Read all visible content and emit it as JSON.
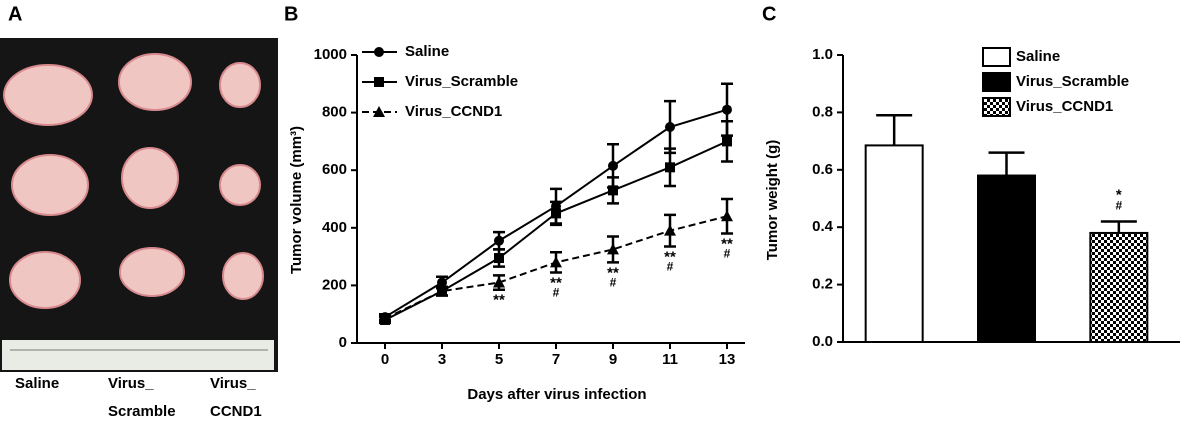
{
  "photo_panel": {
    "panel_label": "A",
    "captions": [
      [
        "Saline"
      ],
      [
        "Virus_",
        "Scramble"
      ],
      [
        "Virus_",
        "CCND1"
      ]
    ]
  },
  "chart_data": [
    {
      "type": "line",
      "panel_label": "B",
      "x_label": "Days after virus infection",
      "y_label": "Tumor volume (mm³)",
      "categories": [
        "0",
        "3",
        "5",
        "7",
        "9",
        "11",
        "13"
      ],
      "ylim": [
        0,
        1000
      ],
      "yticks": [
        0,
        200,
        400,
        600,
        800,
        1000
      ],
      "series": [
        {
          "name": "Saline",
          "color": "#000000",
          "marker": "circle",
          "dash": false,
          "values": [
            90,
            210,
            355,
            475,
            615,
            750,
            810
          ],
          "errors": [
            10,
            20,
            30,
            60,
            75,
            90,
            90
          ]
        },
        {
          "name": "Virus_Scramble",
          "color": "#000000",
          "marker": "square",
          "dash": false,
          "values": [
            80,
            180,
            295,
            450,
            530,
            610,
            700
          ],
          "errors": [
            10,
            15,
            30,
            40,
            45,
            65,
            70
          ]
        },
        {
          "name": "Virus_CCND1",
          "color": "#000000",
          "marker": "triangle",
          "dash": true,
          "values": [
            85,
            180,
            210,
            280,
            325,
            390,
            440
          ],
          "errors": [
            10,
            15,
            25,
            35,
            45,
            55,
            60
          ],
          "stars": [
            null,
            null,
            "**",
            "**",
            "**",
            "**",
            "**"
          ],
          "hashes": [
            null,
            null,
            null,
            "#",
            "#",
            "#",
            "#"
          ]
        }
      ]
    },
    {
      "type": "bar",
      "panel_label": "C",
      "y_label": "Tumor weight (g)",
      "ylim": [
        0,
        1.0
      ],
      "yticks": [
        {
          "value": 0,
          "label": "0.0"
        },
        0.2,
        0.4,
        0.6,
        0.8,
        {
          "value": 1.0,
          "label": "1.0"
        }
      ],
      "series": [
        {
          "name": "Saline",
          "color": "#000000",
          "fill": "white",
          "values": [
            0.685
          ],
          "errors": [
            0.105
          ]
        },
        {
          "name": "Virus_Scramble",
          "color": "#000000",
          "fill": "black",
          "values": [
            0.58
          ],
          "errors": [
            0.08
          ]
        },
        {
          "name": "Virus_CCND1",
          "color": "#000000",
          "fill": "checker",
          "values": [
            0.38
          ],
          "errors": [
            0.04
          ],
          "stars": [
            "*"
          ],
          "hashes": [
            "#"
          ]
        }
      ]
    }
  ]
}
